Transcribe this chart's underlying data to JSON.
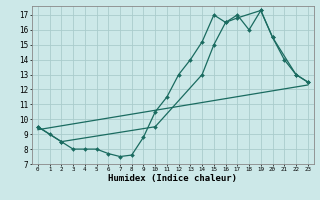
{
  "title": "",
  "xlabel": "Humidex (Indice chaleur)",
  "bg_color": "#cce8e8",
  "grid_color": "#aacccc",
  "line_color": "#1a6b60",
  "xlim": [
    -0.5,
    23.5
  ],
  "ylim": [
    7,
    17.6
  ],
  "yticks": [
    7,
    8,
    9,
    10,
    11,
    12,
    13,
    14,
    15,
    16,
    17
  ],
  "xticks": [
    0,
    1,
    2,
    3,
    4,
    5,
    6,
    7,
    8,
    9,
    10,
    11,
    12,
    13,
    14,
    15,
    16,
    17,
    18,
    19,
    20,
    21,
    22,
    23
  ],
  "series1_x": [
    0,
    1,
    2,
    3,
    4,
    5,
    6,
    7,
    8,
    9,
    10,
    11,
    12,
    13,
    14,
    15,
    16,
    17,
    18,
    19,
    20,
    21,
    22,
    23
  ],
  "series1_y": [
    9.5,
    9.0,
    8.5,
    8.0,
    8.0,
    8.0,
    7.7,
    7.5,
    7.6,
    8.8,
    10.5,
    11.5,
    13.0,
    14.0,
    15.2,
    17.0,
    16.5,
    17.0,
    16.0,
    17.3,
    15.5,
    14.0,
    13.0,
    12.5
  ],
  "series2_x": [
    0,
    2,
    10,
    14,
    15,
    16,
    17,
    19,
    20,
    22,
    23
  ],
  "series2_y": [
    9.5,
    8.5,
    9.5,
    13.0,
    15.0,
    16.5,
    16.8,
    17.3,
    15.5,
    13.0,
    12.5
  ],
  "series3_x": [
    0,
    23
  ],
  "series3_y": [
    9.3,
    12.3
  ],
  "marker_size": 2.0,
  "linewidth": 0.9
}
